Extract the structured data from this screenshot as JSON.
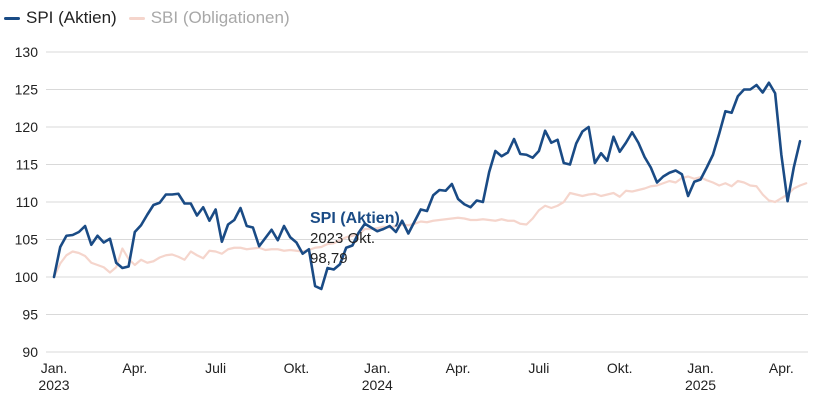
{
  "chart_data": {
    "type": "line",
    "legend_position": "top-left",
    "grid": "horizontal",
    "ylim": [
      90,
      130
    ],
    "y_ticks": [
      "90",
      "95",
      "100",
      "105",
      "110",
      "115",
      "120",
      "125",
      "130"
    ],
    "x_tick_labels": [
      {
        "label": "Jan.",
        "sub": "2023",
        "x": 0
      },
      {
        "label": "Apr.",
        "sub": "",
        "x": 13
      },
      {
        "label": "Juli",
        "sub": "",
        "x": 26
      },
      {
        "label": "Okt.",
        "sub": "",
        "x": 39
      },
      {
        "label": "Jan.",
        "sub": "2024",
        "x": 52
      },
      {
        "label": "Apr.",
        "sub": "",
        "x": 65
      },
      {
        "label": "Juli",
        "sub": "",
        "x": 78
      },
      {
        "label": "Okt.",
        "sub": "",
        "x": 91
      },
      {
        "label": "Jan.",
        "sub": "2025",
        "x": 104
      },
      {
        "label": "Apr.",
        "sub": "",
        "x": 117
      }
    ],
    "series": [
      {
        "name": "SPI (Aktien)",
        "color": "#1a4b85",
        "values": [
          100.0,
          104.0,
          105.5,
          105.6,
          106.0,
          106.8,
          104.3,
          105.5,
          104.6,
          105.1,
          101.9,
          101.2,
          101.4,
          106.0,
          106.9,
          108.3,
          109.6,
          109.9,
          111.0,
          111.0,
          111.1,
          109.8,
          109.8,
          108.2,
          109.3,
          107.5,
          109.0,
          104.7,
          107.0,
          107.6,
          109.2,
          106.8,
          106.6,
          104.1,
          105.2,
          106.3,
          104.9,
          106.8,
          105.3,
          104.6,
          103.1,
          103.7,
          98.79,
          98.4,
          101.2,
          101.0,
          101.7,
          103.9,
          104.2,
          105.9,
          107.1,
          106.6,
          106.1,
          106.4,
          106.8,
          106.0,
          107.5,
          105.8,
          107.4,
          109.0,
          108.8,
          110.9,
          111.6,
          111.5,
          112.4,
          110.4,
          109.7,
          109.3,
          110.2,
          110.0,
          114.0,
          116.8,
          116.1,
          116.6,
          118.4,
          116.4,
          116.3,
          115.9,
          116.8,
          119.5,
          117.9,
          118.3,
          115.2,
          115.0,
          117.8,
          119.4,
          120.0,
          115.2,
          116.5,
          115.5,
          118.7,
          116.7,
          117.9,
          119.3,
          117.9,
          116.0,
          114.6,
          112.6,
          113.4,
          113.9,
          114.2,
          113.7,
          110.8,
          112.7,
          113.0,
          114.6,
          116.3,
          119.1,
          122.1,
          121.9,
          124.1,
          125.0,
          125.0,
          125.6,
          124.6,
          125.9,
          124.5,
          116.3,
          110.1,
          114.6,
          118.1
        ]
      },
      {
        "name": "SBI (Obligationen)",
        "color": "#f5d5cc",
        "values": [
          100.0,
          101.8,
          102.9,
          103.4,
          103.2,
          102.8,
          101.9,
          101.6,
          101.3,
          100.6,
          101.3,
          103.8,
          102.4,
          101.6,
          102.3,
          101.9,
          102.1,
          102.6,
          102.9,
          103.0,
          102.7,
          102.3,
          103.4,
          102.9,
          102.5,
          103.5,
          103.4,
          103.1,
          103.7,
          103.9,
          103.9,
          103.7,
          103.8,
          103.9,
          103.6,
          103.7,
          103.7,
          103.5,
          103.6,
          103.5,
          103.4,
          103.6,
          103.9,
          104.0,
          104.4,
          104.5,
          104.9,
          105.3,
          105.5,
          105.7,
          106.4,
          106.4,
          106.5,
          106.7,
          106.6,
          106.8,
          107.0,
          106.9,
          107.1,
          107.4,
          107.3,
          107.5,
          107.6,
          107.7,
          107.8,
          107.9,
          107.8,
          107.6,
          107.6,
          107.7,
          107.6,
          107.5,
          107.7,
          107.5,
          107.5,
          107.1,
          107.0,
          107.8,
          108.9,
          109.5,
          109.2,
          109.5,
          110.0,
          111.2,
          111.0,
          110.8,
          111.0,
          111.1,
          110.8,
          111.0,
          111.2,
          110.7,
          111.5,
          111.4,
          111.6,
          111.8,
          112.1,
          112.2,
          112.5,
          112.8,
          112.6,
          113.2,
          113.4,
          113.1,
          113.3,
          112.9,
          112.6,
          112.2,
          112.5,
          112.1,
          112.8,
          112.6,
          112.2,
          112.1,
          111.0,
          110.2,
          110.0,
          110.5,
          111.0,
          111.8,
          112.2,
          112.5
        ]
      }
    ],
    "tooltip": {
      "title": "SPI (Aktien)",
      "line1": "2023 Okt.",
      "line2": "98,79",
      "color": "#1a4b85"
    }
  }
}
